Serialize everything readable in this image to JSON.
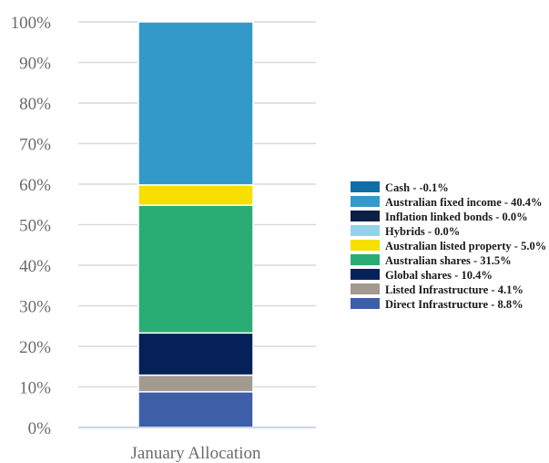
{
  "chart_data": {
    "type": "bar",
    "stacked": true,
    "percent_axis": true,
    "categories": [
      "January Allocation"
    ],
    "ylim": [
      0,
      100
    ],
    "yticks": [
      "0%",
      "10%",
      "20%",
      "30%",
      "40%",
      "50%",
      "60%",
      "70%",
      "80%",
      "90%",
      "100%"
    ],
    "grid": true,
    "legend_position": "right",
    "series": [
      {
        "name": "Cash - -0.1%",
        "value": -0.1,
        "color": "#0e6fa6"
      },
      {
        "name": "Australian fixed income - 40.4%",
        "value": 40.4,
        "color": "#3399c9"
      },
      {
        "name": "Inflation linked bonds - 0.0%",
        "value": 0.0,
        "color": "#0b1f45"
      },
      {
        "name": "Hybrids - 0.0%",
        "value": 0.0,
        "color": "#93d3ea"
      },
      {
        "name": "Australian listed property - 5.0%",
        "value": 5.0,
        "color": "#f7df00"
      },
      {
        "name": "Australian shares - 31.5%",
        "value": 31.5,
        "color": "#2aad74"
      },
      {
        "name": "Global shares - 10.4%",
        "value": 10.4,
        "color": "#06205a"
      },
      {
        "name": "Listed Infrastructure - 4.1%",
        "value": 4.1,
        "color": "#a39a90"
      },
      {
        "name": "Direct Infrastructure - 8.8%",
        "value": 8.8,
        "color": "#3c5fa8"
      }
    ]
  }
}
